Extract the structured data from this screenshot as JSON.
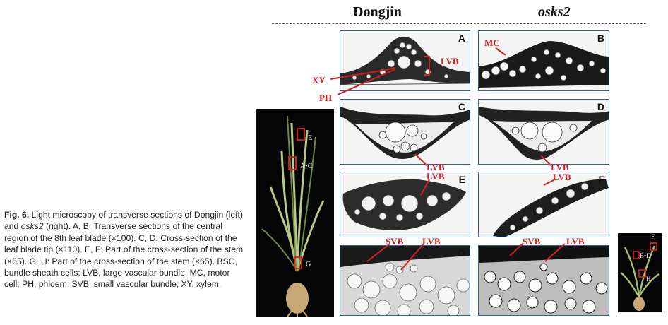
{
  "headers": {
    "left": "Dongjin",
    "right": "osks2"
  },
  "panels": {
    "A": "A",
    "B": "B",
    "C": "C",
    "D": "D",
    "E": "E",
    "F": "F",
    "G": "G",
    "H": "H"
  },
  "annotations": {
    "mc": "MC",
    "lvb_a": "LVB",
    "xy": "XY",
    "ph": "PH",
    "lvb_c": "LVB",
    "lvb_d": "LVB",
    "lvb_e": "LVB",
    "lvb_f": "LVB",
    "svb_g": "SVB",
    "lvb_g": "LVB",
    "svb_h": "SVB",
    "lvb_h": "LVB"
  },
  "plant_left_labels": {
    "e": "E",
    "ac": "A•C",
    "g": "G"
  },
  "plant_right_labels": {
    "f": "F",
    "bd": "B•D",
    "h": "H"
  },
  "caption": {
    "fig": "Fig. 6.",
    "t1": " Light microscopy of transverse sections of Dongjin (left) and ",
    "osks2": "osks2",
    "t2": " (right). A, B: Transverse sections of the central region of the 8th leaf blade (×100). C, D: Cross-section of the leaf blade tip (×110). E, F: Part of the cross-section of the stem (×65). G, H: Part of the cross-section of the stem (×65). BSC, bundle sheath cells; LVB, large vascular bundle; MC, motor cell; PH, phloem; SVB, small vascular bundle; XY, xylem."
  },
  "colors": {
    "panel_border": "#3a5fa0",
    "label_red": "#cc2222"
  }
}
